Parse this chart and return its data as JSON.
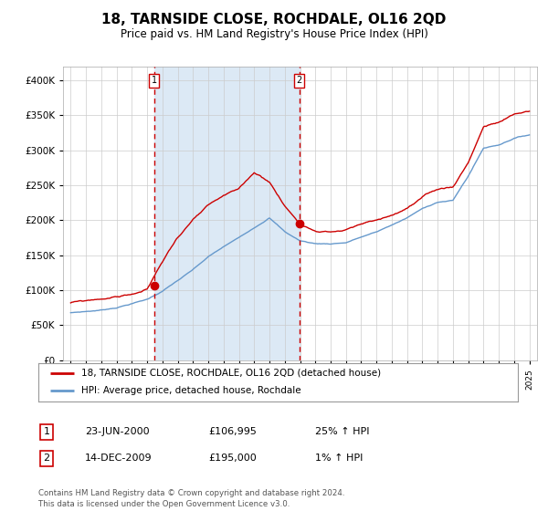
{
  "title": "18, TARNSIDE CLOSE, ROCHDALE, OL16 2QD",
  "subtitle": "Price paid vs. HM Land Registry's House Price Index (HPI)",
  "legend_line1": "18, TARNSIDE CLOSE, ROCHDALE, OL16 2QD (detached house)",
  "legend_line2": "HPI: Average price, detached house, Rochdale",
  "footnote": "Contains HM Land Registry data © Crown copyright and database right 2024.\nThis data is licensed under the Open Government Licence v3.0.",
  "table_rows": [
    {
      "num": "1",
      "date": "23-JUN-2000",
      "price": "£106,995",
      "hpi": "25% ↑ HPI"
    },
    {
      "num": "2",
      "date": "14-DEC-2009",
      "price": "£195,000",
      "hpi": "1% ↑ HPI"
    }
  ],
  "sale1_date": 2000.47,
  "sale1_price": 106995,
  "sale2_date": 2009.95,
  "sale2_price": 195000,
  "vline1": 2000.47,
  "vline2": 2009.95,
  "shade_color": "#dce9f5",
  "red_line_color": "#cc0000",
  "blue_line_color": "#6699cc",
  "dashed_red": "#cc0000",
  "ylim": [
    0,
    420000
  ],
  "xlim_start": 1994.5,
  "xlim_end": 2025.5,
  "hpi_anchors_x": [
    1995,
    1996,
    1997,
    1998,
    1999,
    2000,
    2001,
    2002,
    2003,
    2004,
    2005,
    2006,
    2007,
    2008,
    2009,
    2010,
    2011,
    2012,
    2013,
    2014,
    2015,
    2016,
    2017,
    2018,
    2019,
    2020,
    2021,
    2022,
    2023,
    2024,
    2025
  ],
  "hpi_anchors_y": [
    68000,
    70000,
    72000,
    76000,
    82000,
    88000,
    100000,
    115000,
    130000,
    148000,
    162000,
    175000,
    190000,
    205000,
    185000,
    172000,
    168000,
    168000,
    170000,
    178000,
    185000,
    195000,
    205000,
    218000,
    228000,
    230000,
    265000,
    305000,
    310000,
    320000,
    325000
  ],
  "pp_anchors_x": [
    1995,
    1996,
    1997,
    1998,
    1999,
    2000,
    2001,
    2002,
    2003,
    2004,
    2005,
    2006,
    2007,
    2008,
    2009,
    2010,
    2011,
    2012,
    2013,
    2014,
    2015,
    2016,
    2017,
    2018,
    2019,
    2020,
    2021,
    2022,
    2023,
    2024,
    2025
  ],
  "pp_anchors_y": [
    82000,
    84000,
    87000,
    90000,
    94000,
    100000,
    140000,
    175000,
    200000,
    218000,
    230000,
    238000,
    262000,
    250000,
    215000,
    190000,
    183000,
    182000,
    185000,
    192000,
    198000,
    205000,
    215000,
    228000,
    238000,
    242000,
    278000,
    330000,
    335000,
    345000,
    350000
  ]
}
